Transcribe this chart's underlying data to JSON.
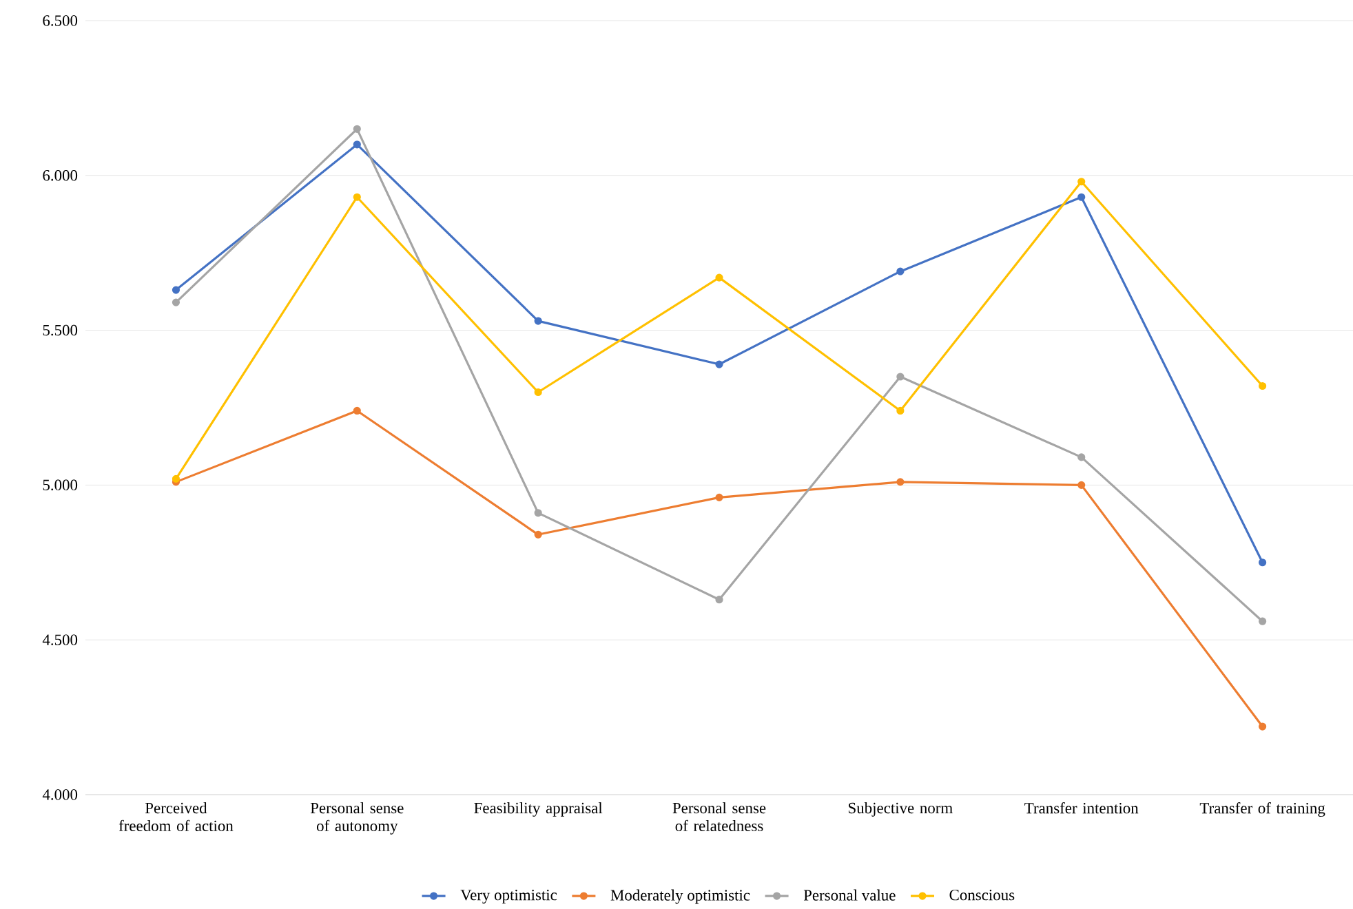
{
  "chart_data": {
    "type": "line",
    "categories": [
      "Perceived freedom of action",
      "Personal sense of autonomy",
      "Feasibility appraisal",
      "Personal sense of relatedness",
      "Subjective norm",
      "Transfer intention",
      "Transfer of training"
    ],
    "series": [
      {
        "name": "Very optimistic",
        "color": "#4472c4",
        "values": [
          5.63,
          6.1,
          5.53,
          5.39,
          5.69,
          5.93,
          4.75
        ]
      },
      {
        "name": "Moderately optimistic",
        "color": "#ed7d31",
        "values": [
          5.01,
          5.24,
          4.84,
          4.96,
          5.01,
          5.0,
          4.22
        ]
      },
      {
        "name": "Personal value",
        "color": "#a5a5a5",
        "values": [
          5.59,
          6.15,
          4.91,
          4.63,
          5.35,
          5.09,
          4.56
        ]
      },
      {
        "name": "Conscious",
        "color": "#ffc000",
        "values": [
          5.02,
          5.93,
          5.3,
          5.67,
          5.24,
          5.98,
          5.32
        ]
      }
    ],
    "ylim": [
      4.0,
      6.5
    ],
    "yticks": [
      {
        "value": 4.0,
        "label": "4.000"
      },
      {
        "value": 4.5,
        "label": "4.500"
      },
      {
        "value": 5.0,
        "label": "5.000"
      },
      {
        "value": 5.5,
        "label": "5.500"
      },
      {
        "value": 6.0,
        "label": "6.000"
      },
      {
        "value": 6.5,
        "label": "6.500"
      }
    ],
    "grid": "y",
    "legend": "bottom",
    "marker": "circle",
    "line_style": "solid"
  }
}
